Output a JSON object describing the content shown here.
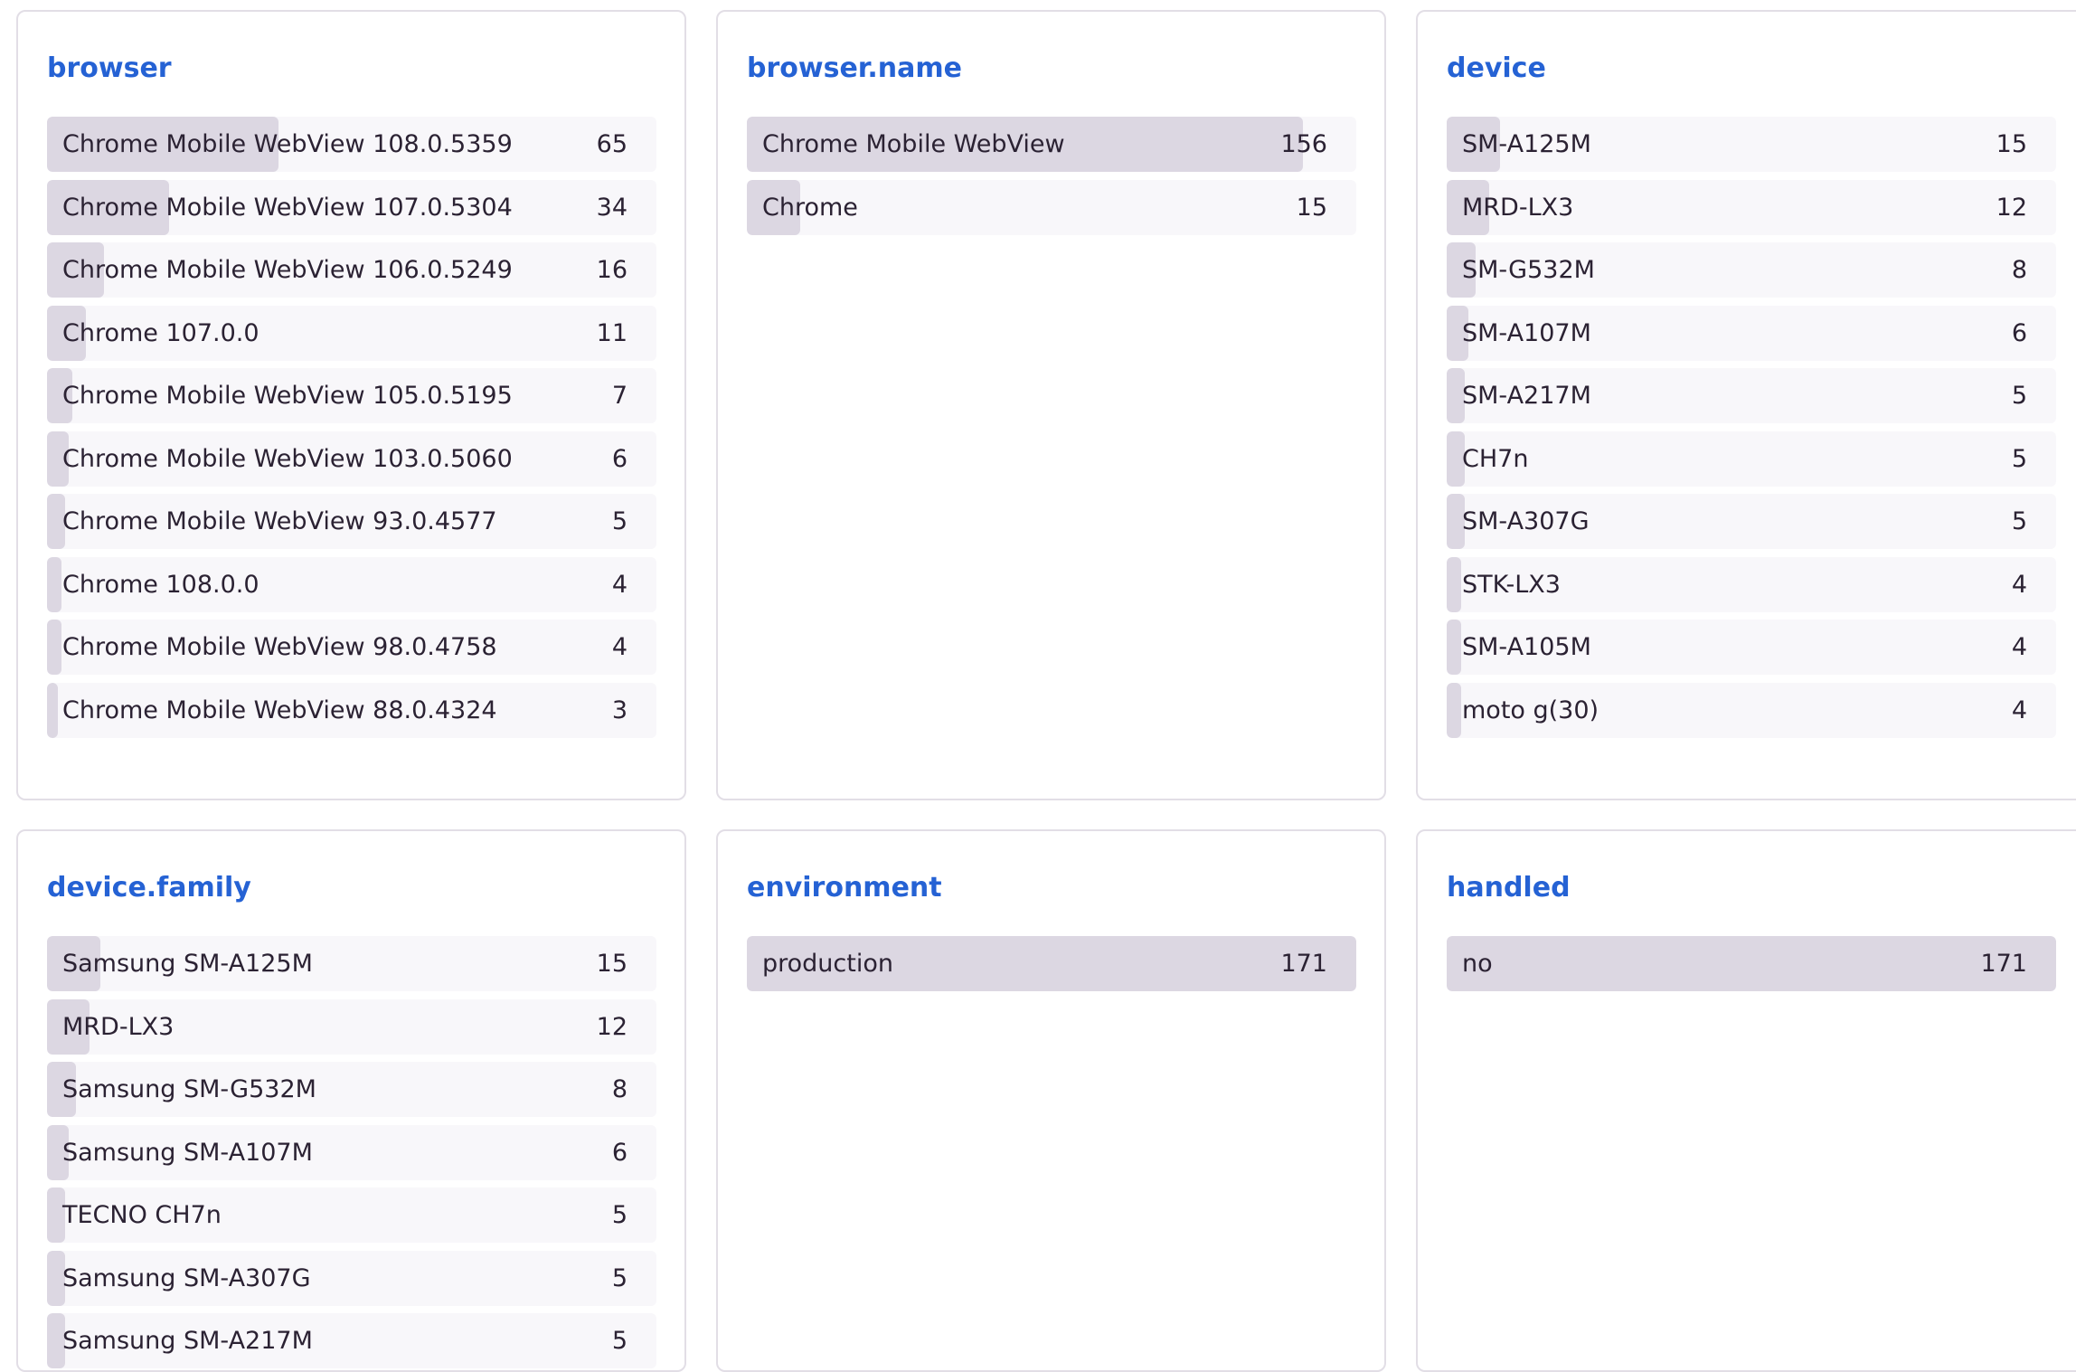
{
  "panels": [
    {
      "title": "browser",
      "rows": [
        {
          "label": "Chrome Mobile WebView 108.0.5359",
          "count": "65",
          "share": 0.38
        },
        {
          "label": "Chrome Mobile WebView 107.0.5304",
          "count": "34",
          "share": 0.2
        },
        {
          "label": "Chrome Mobile WebView 106.0.5249",
          "count": "16",
          "share": 0.094
        },
        {
          "label": "Chrome 107.0.0",
          "count": "11",
          "share": 0.064
        },
        {
          "label": "Chrome Mobile WebView 105.0.5195",
          "count": "7",
          "share": 0.041
        },
        {
          "label": "Chrome Mobile WebView 103.0.5060",
          "count": "6",
          "share": 0.035
        },
        {
          "label": "Chrome Mobile WebView 93.0.4577",
          "count": "5",
          "share": 0.029
        },
        {
          "label": "Chrome 108.0.0",
          "count": "4",
          "share": 0.023
        },
        {
          "label": "Chrome Mobile WebView 98.0.4758",
          "count": "4",
          "share": 0.023
        },
        {
          "label": "Chrome Mobile WebView 88.0.4324",
          "count": "3",
          "share": 0.018
        }
      ]
    },
    {
      "title": "browser.name",
      "rows": [
        {
          "label": "Chrome Mobile WebView",
          "count": "156",
          "share": 0.912
        },
        {
          "label": "Chrome",
          "count": "15",
          "share": 0.088
        }
      ]
    },
    {
      "title": "device",
      "rows": [
        {
          "label": "SM-A125M",
          "count": "15",
          "share": 0.088
        },
        {
          "label": "MRD-LX3",
          "count": "12",
          "share": 0.07
        },
        {
          "label": "SM-G532M",
          "count": "8",
          "share": 0.047
        },
        {
          "label": "SM-A107M",
          "count": "6",
          "share": 0.035
        },
        {
          "label": "SM-A217M",
          "count": "5",
          "share": 0.029
        },
        {
          "label": "CH7n",
          "count": "5",
          "share": 0.029
        },
        {
          "label": "SM-A307G",
          "count": "5",
          "share": 0.029
        },
        {
          "label": "STK-LX3",
          "count": "4",
          "share": 0.023
        },
        {
          "label": "SM-A105M",
          "count": "4",
          "share": 0.023
        },
        {
          "label": "moto g(30)",
          "count": "4",
          "share": 0.023
        }
      ]
    },
    {
      "title": "device.family",
      "rows": [
        {
          "label": "Samsung SM-A125M",
          "count": "15",
          "share": 0.088
        },
        {
          "label": "MRD-LX3",
          "count": "12",
          "share": 0.07
        },
        {
          "label": "Samsung SM-G532M",
          "count": "8",
          "share": 0.047
        },
        {
          "label": "Samsung SM-A107M",
          "count": "6",
          "share": 0.035
        },
        {
          "label": "TECNO CH7n",
          "count": "5",
          "share": 0.029
        },
        {
          "label": "Samsung SM-A307G",
          "count": "5",
          "share": 0.029
        },
        {
          "label": "Samsung SM-A217M",
          "count": "5",
          "share": 0.029
        }
      ]
    },
    {
      "title": "environment",
      "rows": [
        {
          "label": "production",
          "count": "171",
          "share": 1.0
        }
      ]
    },
    {
      "title": "handled",
      "rows": [
        {
          "label": "no",
          "count": "171",
          "share": 1.0
        }
      ]
    }
  ]
}
